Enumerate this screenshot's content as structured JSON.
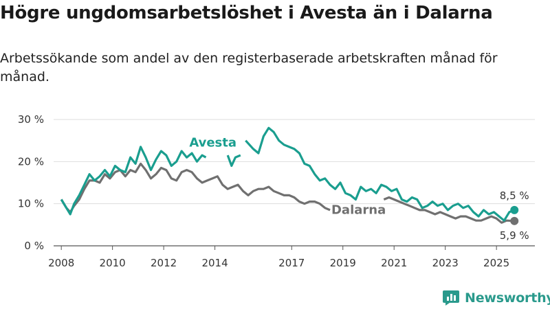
{
  "title": "Högre ungdomsarbetslöshet i Avesta än i Dalarna",
  "subtitle": "Arbetssökande som andel av den registerbaserade arbetskraften månad för månad.",
  "brand": {
    "name": "Newsworthy",
    "icon": "newsworthy-logo-icon"
  },
  "colors": {
    "avesta": "#1a9e8f",
    "dalarna": "#707070",
    "grid": "#dddddd"
  },
  "chart_data": {
    "type": "line",
    "title": "Högre ungdomsarbetslöshet i Avesta än i Dalarna",
    "xlabel": "",
    "ylabel": "",
    "xlim": [
      2007.7,
      2026.5
    ],
    "ylim": [
      0,
      30
    ],
    "grid": true,
    "y_ticks": [
      0,
      10,
      20,
      30
    ],
    "y_tick_labels": [
      "0 %",
      "10 %",
      "20 %",
      "30 %"
    ],
    "x_ticks": [
      2008,
      2010,
      2012,
      2014,
      2017,
      2019,
      2021,
      2023,
      2025
    ],
    "x_tick_labels": [
      "2008",
      "2010",
      "2012",
      "2014",
      "2017",
      "2019",
      "2021",
      "2023",
      "2025"
    ],
    "series": [
      {
        "name": "Avesta",
        "label": "Avesta",
        "end_label": "8,5 %",
        "points": [
          [
            2008.0,
            11.0
          ],
          [
            2008.2,
            9.0
          ],
          [
            2008.35,
            7.5
          ],
          [
            2008.5,
            10.0
          ],
          [
            2008.7,
            12.0
          ],
          [
            2008.9,
            14.5
          ],
          [
            2009.1,
            17.0
          ],
          [
            2009.3,
            15.5
          ],
          [
            2009.5,
            16.5
          ],
          [
            2009.7,
            18.0
          ],
          [
            2009.9,
            16.5
          ],
          [
            2010.1,
            19.0
          ],
          [
            2010.3,
            18.0
          ],
          [
            2010.5,
            17.5
          ],
          [
            2010.7,
            21.0
          ],
          [
            2010.9,
            19.5
          ],
          [
            2011.1,
            23.5
          ],
          [
            2011.3,
            21.0
          ],
          [
            2011.5,
            18.0
          ],
          [
            2011.7,
            20.5
          ],
          [
            2011.9,
            22.5
          ],
          [
            2012.1,
            21.5
          ],
          [
            2012.3,
            19.0
          ],
          [
            2012.5,
            20.0
          ],
          [
            2012.7,
            22.5
          ],
          [
            2012.9,
            21.0
          ],
          [
            2013.1,
            22.0
          ],
          [
            2013.3,
            20.0
          ],
          [
            2013.5,
            21.5
          ],
          [
            2013.65,
            21.0
          ],
          null,
          [
            2014.5,
            21.5
          ],
          [
            2014.65,
            19.0
          ],
          [
            2014.8,
            21.0
          ],
          [
            2015.0,
            21.5
          ],
          null,
          [
            2015.2,
            25.0
          ],
          [
            2015.5,
            23.0
          ],
          [
            2015.7,
            22.0
          ],
          [
            2015.9,
            26.0
          ],
          [
            2016.1,
            28.0
          ],
          [
            2016.3,
            27.0
          ],
          [
            2016.5,
            25.0
          ],
          [
            2016.7,
            24.0
          ],
          [
            2016.9,
            23.5
          ],
          [
            2017.1,
            23.0
          ],
          [
            2017.3,
            22.0
          ],
          [
            2017.5,
            19.5
          ],
          [
            2017.7,
            19.0
          ],
          [
            2017.9,
            17.0
          ],
          [
            2018.1,
            15.5
          ],
          [
            2018.3,
            16.0
          ],
          [
            2018.5,
            14.5
          ],
          [
            2018.7,
            13.5
          ],
          [
            2018.9,
            15.0
          ],
          [
            2019.1,
            12.5
          ],
          [
            2019.3,
            12.0
          ],
          [
            2019.5,
            11.0
          ],
          [
            2019.7,
            14.0
          ],
          [
            2019.9,
            13.0
          ],
          [
            2020.1,
            13.5
          ],
          [
            2020.3,
            12.5
          ],
          [
            2020.5,
            14.5
          ],
          [
            2020.7,
            14.0
          ],
          [
            2020.9,
            13.0
          ],
          [
            2021.1,
            13.5
          ],
          [
            2021.3,
            11.0
          ],
          [
            2021.5,
            10.5
          ],
          [
            2021.7,
            11.5
          ],
          [
            2021.9,
            11.0
          ],
          [
            2022.1,
            9.0
          ],
          [
            2022.3,
            9.5
          ],
          [
            2022.5,
            10.5
          ],
          [
            2022.7,
            9.5
          ],
          [
            2022.9,
            10.0
          ],
          [
            2023.1,
            8.5
          ],
          [
            2023.3,
            9.5
          ],
          [
            2023.5,
            10.0
          ],
          [
            2023.7,
            9.0
          ],
          [
            2023.9,
            9.5
          ],
          [
            2024.1,
            8.0
          ],
          [
            2024.3,
            7.0
          ],
          [
            2024.5,
            8.5
          ],
          [
            2024.7,
            7.5
          ],
          [
            2024.9,
            8.0
          ],
          [
            2025.1,
            7.0
          ],
          [
            2025.3,
            6.0
          ],
          [
            2025.5,
            8.0
          ],
          [
            2025.7,
            8.5
          ]
        ]
      },
      {
        "name": "Dalarna",
        "label": "Dalarna",
        "end_label": "5,9 %",
        "points": [
          [
            2008.0,
            11.0
          ],
          [
            2008.2,
            9.0
          ],
          [
            2008.35,
            8.0
          ],
          [
            2008.5,
            9.5
          ],
          [
            2008.7,
            11.0
          ],
          [
            2008.9,
            13.5
          ],
          [
            2009.1,
            15.5
          ],
          [
            2009.3,
            15.5
          ],
          [
            2009.5,
            15.0
          ],
          [
            2009.7,
            17.0
          ],
          [
            2009.9,
            16.0
          ],
          [
            2010.1,
            17.5
          ],
          [
            2010.3,
            18.0
          ],
          [
            2010.5,
            16.5
          ],
          [
            2010.7,
            18.0
          ],
          [
            2010.9,
            17.5
          ],
          [
            2011.1,
            19.5
          ],
          [
            2011.3,
            18.0
          ],
          [
            2011.5,
            16.0
          ],
          [
            2011.7,
            17.0
          ],
          [
            2011.9,
            18.5
          ],
          [
            2012.1,
            18.0
          ],
          [
            2012.3,
            16.0
          ],
          [
            2012.5,
            15.5
          ],
          [
            2012.7,
            17.5
          ],
          [
            2012.9,
            18.0
          ],
          [
            2013.1,
            17.5
          ],
          [
            2013.3,
            16.0
          ],
          [
            2013.5,
            15.0
          ],
          [
            2013.7,
            15.5
          ],
          [
            2013.9,
            16.0
          ],
          [
            2014.1,
            16.5
          ],
          [
            2014.3,
            14.5
          ],
          [
            2014.5,
            13.5
          ],
          [
            2014.7,
            14.0
          ],
          [
            2014.9,
            14.5
          ],
          [
            2015.1,
            13.0
          ],
          [
            2015.3,
            12.0
          ],
          [
            2015.5,
            13.0
          ],
          [
            2015.7,
            13.5
          ],
          [
            2015.9,
            13.5
          ],
          [
            2016.1,
            14.0
          ],
          [
            2016.3,
            13.0
          ],
          [
            2016.5,
            12.5
          ],
          [
            2016.7,
            12.0
          ],
          [
            2016.9,
            12.0
          ],
          [
            2017.1,
            11.5
          ],
          [
            2017.3,
            10.5
          ],
          [
            2017.5,
            10.0
          ],
          [
            2017.7,
            10.5
          ],
          [
            2017.9,
            10.5
          ],
          [
            2018.1,
            10.0
          ],
          [
            2018.3,
            9.0
          ],
          [
            2018.5,
            8.5
          ]
        ],
        "points_b": [
          [
            2020.6,
            11.0
          ],
          [
            2020.8,
            11.5
          ],
          [
            2021.0,
            11.0
          ],
          [
            2021.2,
            10.5
          ],
          [
            2021.4,
            10.0
          ],
          [
            2021.6,
            9.5
          ],
          [
            2021.8,
            9.0
          ],
          [
            2022.0,
            8.5
          ],
          [
            2022.2,
            8.5
          ],
          [
            2022.4,
            8.0
          ],
          [
            2022.6,
            7.5
          ],
          [
            2022.8,
            8.0
          ],
          [
            2023.0,
            7.5
          ],
          [
            2023.2,
            7.0
          ],
          [
            2023.4,
            6.5
          ],
          [
            2023.6,
            7.0
          ],
          [
            2023.8,
            7.0
          ],
          [
            2024.0,
            6.5
          ],
          [
            2024.2,
            6.0
          ],
          [
            2024.4,
            6.0
          ],
          [
            2024.6,
            6.5
          ],
          [
            2024.8,
            7.0
          ],
          [
            2025.0,
            6.5
          ],
          [
            2025.2,
            5.5
          ],
          [
            2025.4,
            6.0
          ],
          [
            2025.7,
            5.9
          ]
        ]
      }
    ]
  }
}
